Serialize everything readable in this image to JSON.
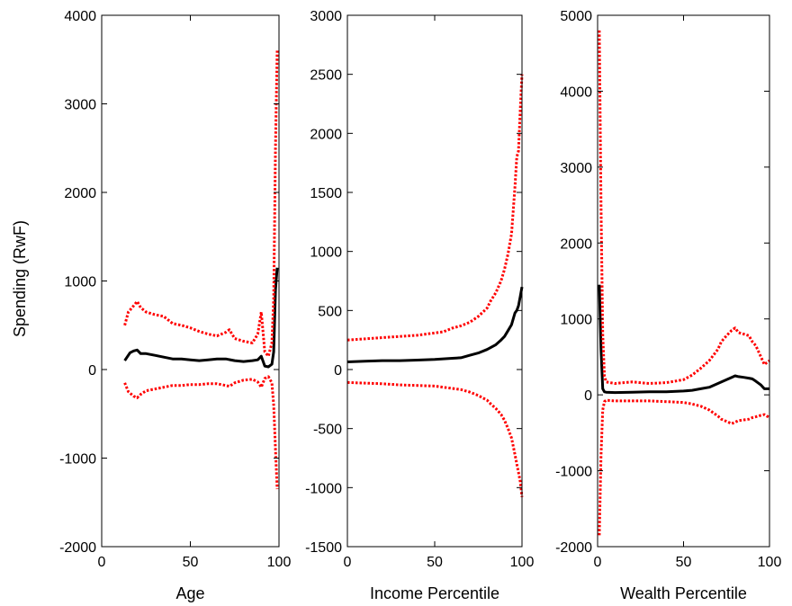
{
  "figure": {
    "ylabel": "Spending (RwF)"
  },
  "colors": {
    "mean": "#000000",
    "band": "#ff0000",
    "axes": "#000000",
    "background": "#ffffff"
  },
  "chart_data": [
    {
      "type": "line",
      "xlabel": "Age",
      "ylabel": "Spending (RwF)",
      "xlim": [
        0,
        100
      ],
      "ylim": [
        -2000,
        4000
      ],
      "xticks": [
        0,
        50,
        100
      ],
      "yticks": [
        -2000,
        -1000,
        0,
        1000,
        2000,
        3000,
        4000
      ],
      "grid": false,
      "series": [
        {
          "style": "solid",
          "x": [
            13,
            16,
            18,
            20,
            22,
            25,
            30,
            35,
            40,
            45,
            50,
            55,
            60,
            65,
            70,
            75,
            80,
            85,
            88,
            90,
            92,
            94,
            96,
            97,
            98,
            99
          ],
          "y": [
            100,
            190,
            210,
            220,
            180,
            180,
            160,
            140,
            120,
            120,
            110,
            100,
            110,
            120,
            120,
            100,
            90,
            100,
            110,
            150,
            40,
            30,
            60,
            200,
            900,
            1150
          ]
        },
        {
          "style": "dotted",
          "x": [
            13,
            15,
            18,
            20,
            22,
            25,
            30,
            35,
            40,
            45,
            50,
            55,
            60,
            65,
            70,
            72,
            75,
            80,
            85,
            88,
            90,
            92,
            94,
            96,
            97,
            98,
            99
          ],
          "y": [
            500,
            650,
            720,
            770,
            700,
            650,
            620,
            600,
            520,
            500,
            470,
            430,
            400,
            380,
            420,
            450,
            350,
            320,
            300,
            400,
            650,
            200,
            150,
            300,
            800,
            2500,
            3600
          ]
        },
        {
          "style": "dotted",
          "x": [
            13,
            15,
            18,
            20,
            22,
            25,
            30,
            35,
            40,
            45,
            50,
            55,
            60,
            65,
            70,
            72,
            75,
            80,
            85,
            88,
            90,
            92,
            94,
            96,
            97,
            98,
            99
          ],
          "y": [
            -150,
            -250,
            -300,
            -320,
            -280,
            -240,
            -220,
            -200,
            -180,
            -180,
            -170,
            -170,
            -160,
            -160,
            -180,
            -190,
            -150,
            -120,
            -110,
            -140,
            -200,
            -100,
            -80,
            -150,
            -400,
            -900,
            -1350
          ]
        }
      ]
    },
    {
      "type": "line",
      "xlabel": "Income Percentile",
      "xlim": [
        0,
        100
      ],
      "ylim": [
        -1500,
        3000
      ],
      "xticks": [
        0,
        50,
        100
      ],
      "yticks": [
        -1500,
        -1000,
        -500,
        0,
        500,
        1000,
        1500,
        2000,
        2500,
        3000
      ],
      "grid": false,
      "series": [
        {
          "style": "solid",
          "x": [
            0,
            10,
            20,
            30,
            40,
            50,
            60,
            65,
            70,
            75,
            80,
            85,
            88,
            90,
            92,
            94,
            96,
            97,
            98,
            99,
            100
          ],
          "y": [
            65,
            70,
            75,
            75,
            80,
            85,
            95,
            100,
            120,
            140,
            170,
            210,
            250,
            280,
            330,
            380,
            480,
            500,
            540,
            620,
            700
          ]
        },
        {
          "style": "dotted",
          "x": [
            0,
            10,
            20,
            30,
            40,
            50,
            55,
            60,
            65,
            70,
            75,
            80,
            82,
            85,
            88,
            90,
            92,
            94,
            95,
            96,
            97,
            98,
            99,
            100
          ],
          "y": [
            250,
            260,
            270,
            280,
            290,
            310,
            320,
            350,
            370,
            400,
            450,
            520,
            580,
            650,
            750,
            850,
            980,
            1150,
            1350,
            1550,
            1800,
            1850,
            2200,
            2500
          ]
        },
        {
          "style": "dotted",
          "x": [
            0,
            10,
            20,
            30,
            40,
            50,
            55,
            60,
            65,
            70,
            75,
            80,
            82,
            85,
            88,
            90,
            92,
            94,
            95,
            96,
            97,
            98,
            99,
            100
          ],
          "y": [
            -110,
            -115,
            -120,
            -130,
            -135,
            -140,
            -150,
            -160,
            -170,
            -190,
            -220,
            -260,
            -290,
            -330,
            -380,
            -430,
            -500,
            -580,
            -650,
            -720,
            -800,
            -870,
            -950,
            -1080
          ]
        }
      ]
    },
    {
      "type": "line",
      "xlabel": "Wealth Percentile",
      "xlim": [
        0,
        100
      ],
      "ylim": [
        -2000,
        5000
      ],
      "xticks": [
        0,
        50,
        100
      ],
      "yticks": [
        -2000,
        -1000,
        0,
        1000,
        2000,
        3000,
        4000,
        5000
      ],
      "grid": false,
      "series": [
        {
          "style": "solid",
          "x": [
            1,
            2,
            3,
            4,
            5,
            10,
            20,
            30,
            40,
            50,
            55,
            60,
            65,
            70,
            75,
            78,
            80,
            82,
            85,
            88,
            90,
            92,
            95,
            97,
            100
          ],
          "y": [
            1450,
            600,
            80,
            40,
            35,
            30,
            35,
            40,
            40,
            50,
            60,
            80,
            100,
            150,
            200,
            230,
            250,
            240,
            230,
            220,
            210,
            180,
            130,
            80,
            80
          ]
        },
        {
          "style": "dotted",
          "x": [
            1,
            2,
            3,
            4,
            5,
            10,
            20,
            30,
            40,
            50,
            55,
            60,
            65,
            70,
            72,
            75,
            78,
            80,
            82,
            85,
            88,
            90,
            92,
            95,
            97,
            100
          ],
          "y": [
            4800,
            2500,
            800,
            250,
            170,
            150,
            170,
            150,
            160,
            200,
            260,
            350,
            450,
            600,
            700,
            780,
            850,
            880,
            820,
            800,
            780,
            700,
            650,
            500,
            400,
            450
          ]
        },
        {
          "style": "dotted",
          "x": [
            1,
            2,
            3,
            4,
            5,
            10,
            20,
            30,
            40,
            50,
            55,
            60,
            65,
            70,
            72,
            75,
            78,
            80,
            82,
            85,
            88,
            90,
            92,
            95,
            97,
            100
          ],
          "y": [
            -1850,
            -800,
            -200,
            -90,
            -70,
            -80,
            -80,
            -80,
            -90,
            -100,
            -120,
            -150,
            -200,
            -280,
            -320,
            -350,
            -380,
            -360,
            -340,
            -330,
            -320,
            -300,
            -290,
            -270,
            -260,
            -300
          ]
        }
      ]
    }
  ]
}
